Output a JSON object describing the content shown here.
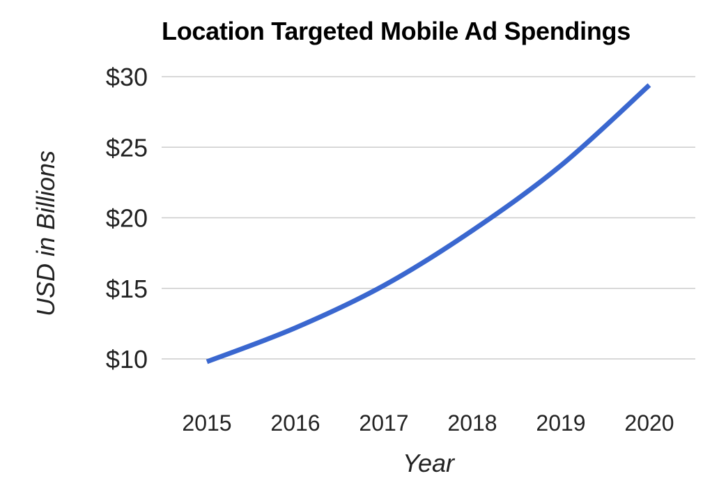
{
  "chart_data": {
    "type": "line",
    "title": "Location Targeted Mobile Ad Spendings",
    "xlabel": "Year",
    "ylabel": "USD in Billions",
    "categories": [
      "2015",
      "2016",
      "2017",
      "2018",
      "2019",
      "2020"
    ],
    "x": [
      2015,
      2016,
      2017,
      2018,
      2019,
      2020
    ],
    "series": [
      {
        "values": [
          9.8,
          12.2,
          15.2,
          19.1,
          23.7,
          29.4
        ]
      }
    ],
    "ylim": [
      10,
      30
    ],
    "yticks": [
      10,
      15,
      20,
      25,
      30
    ],
    "ytick_labels": [
      "$10",
      "$15",
      "$20",
      "$25",
      "$30"
    ],
    "grid": true,
    "legend": "none",
    "colors": {
      "line": "#3a67cf",
      "grid": "#cccccc"
    }
  }
}
